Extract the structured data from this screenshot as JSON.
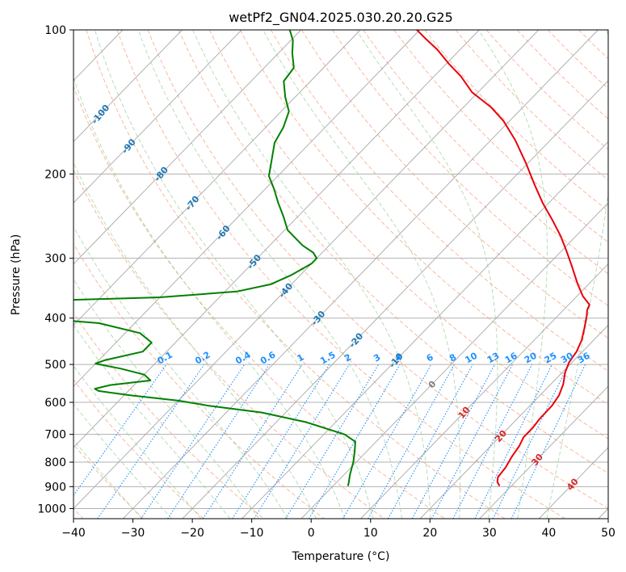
{
  "chart_data": {
    "type": "line",
    "title": "wetPf2_GN04.2025.030.20.20.G25",
    "xlabel": "Temperature (°C)",
    "ylabel": "Pressure (hPa)",
    "xlim": [
      -40,
      50
    ],
    "ylim": [
      1050,
      100
    ],
    "y_scale": "log",
    "skew": true,
    "grid": true,
    "x_ticks": [
      -40,
      -30,
      -20,
      -10,
      0,
      10,
      20,
      30,
      40,
      50
    ],
    "y_ticks": [
      100,
      200,
      300,
      400,
      500,
      600,
      700,
      800,
      900,
      1000
    ],
    "series": [
      {
        "role": "temperature",
        "color": "#e8000b",
        "points": [
          [
            897,
            28.0
          ],
          [
            880,
            27.0
          ],
          [
            860,
            26.3
          ],
          [
            820,
            26.0
          ],
          [
            780,
            25.3
          ],
          [
            740,
            24.8
          ],
          [
            710,
            24.1
          ],
          [
            680,
            24.1
          ],
          [
            650,
            23.8
          ],
          [
            610,
            23.7
          ],
          [
            580,
            23.2
          ],
          [
            550,
            22.1
          ],
          [
            520,
            20.5
          ],
          [
            495,
            19.5
          ],
          [
            470,
            19.0
          ],
          [
            445,
            18.0
          ],
          [
            420,
            16.5
          ],
          [
            395,
            14.8
          ],
          [
            385,
            14.0
          ],
          [
            375,
            13.5
          ],
          [
            360,
            11.0
          ],
          [
            340,
            8.2
          ],
          [
            310,
            4.0
          ],
          [
            290,
            0.9
          ],
          [
            270,
            -2.5
          ],
          [
            250,
            -6.5
          ],
          [
            230,
            -11.0
          ],
          [
            210,
            -15.5
          ],
          [
            190,
            -20.3
          ],
          [
            170,
            -25.9
          ],
          [
            155,
            -31.0
          ],
          [
            145,
            -35.4
          ],
          [
            135,
            -41.0
          ],
          [
            125,
            -45.5
          ],
          [
            118,
            -49.4
          ],
          [
            110,
            -53.8
          ],
          [
            104,
            -57.8
          ],
          [
            100,
            -60.5
          ]
        ]
      },
      {
        "role": "dewpoint",
        "color": "#008000",
        "points": [
          [
            897,
            2.5
          ],
          [
            880,
            2.0
          ],
          [
            850,
            1.0
          ],
          [
            800,
            -0.5
          ],
          [
            760,
            -2.0
          ],
          [
            725,
            -3.5
          ],
          [
            700,
            -6.5
          ],
          [
            660,
            -15.0
          ],
          [
            630,
            -24.0
          ],
          [
            610,
            -34.0
          ],
          [
            595,
            -40.0
          ],
          [
            580,
            -49.0
          ],
          [
            568,
            -55.0
          ],
          [
            562,
            -56.0
          ],
          [
            552,
            -54.0
          ],
          [
            540,
            -48.0
          ],
          [
            525,
            -50.0
          ],
          [
            510,
            -55.0
          ],
          [
            498,
            -60.0
          ],
          [
            490,
            -59.0
          ],
          [
            470,
            -54.0
          ],
          [
            450,
            -54.0
          ],
          [
            430,
            -57.5
          ],
          [
            410,
            -66.0
          ],
          [
            395,
            -83.0
          ],
          [
            388,
            -90.0
          ],
          [
            380,
            -88.0
          ],
          [
            368,
            -79.0
          ],
          [
            362,
            -60.0
          ],
          [
            352,
            -48.0
          ],
          [
            340,
            -43.5
          ],
          [
            325,
            -41.5
          ],
          [
            308,
            -40.0
          ],
          [
            300,
            -40.0
          ],
          [
            292,
            -41.5
          ],
          [
            282,
            -44.5
          ],
          [
            262,
            -49.5
          ],
          [
            245,
            -52.5
          ],
          [
            230,
            -55.5
          ],
          [
            215,
            -58.5
          ],
          [
            202,
            -61.5
          ],
          [
            188,
            -63.5
          ],
          [
            172,
            -66.0
          ],
          [
            160,
            -67.0
          ],
          [
            148,
            -68.7
          ],
          [
            138,
            -71.7
          ],
          [
            128,
            -74.5
          ],
          [
            120,
            -75.0
          ],
          [
            112,
            -77.6
          ],
          [
            105,
            -79.7
          ],
          [
            100,
            -81.9
          ]
        ]
      }
    ],
    "isotherm_labels": [
      {
        "label": "-100",
        "color": "#1f77b4"
      },
      {
        "label": "-90",
        "color": "#1f77b4"
      },
      {
        "label": "-80",
        "color": "#1f77b4"
      },
      {
        "label": "-70",
        "color": "#1f77b4"
      },
      {
        "label": "-60",
        "color": "#1f77b4"
      },
      {
        "label": "-50",
        "color": "#1f77b4"
      },
      {
        "label": "-40",
        "color": "#1f77b4"
      },
      {
        "label": "-30",
        "color": "#1f77b4"
      },
      {
        "label": "-20",
        "color": "#1f77b4"
      },
      {
        "label": "-10",
        "color": "#1f77b4"
      },
      {
        "label": "0",
        "color": "#7f7f7f"
      },
      {
        "label": "10",
        "color": "#d62728"
      },
      {
        "label": "20",
        "color": "#d62728"
      },
      {
        "label": "30",
        "color": "#d62728"
      },
      {
        "label": "40",
        "color": "#d62728"
      }
    ],
    "mixing_ratio_labels": [
      "0.1",
      "0.2",
      "0.4",
      "0.6",
      "1",
      "1.5",
      "2",
      "3",
      "4",
      "6",
      "8",
      "10",
      "13",
      "16",
      "20",
      "25",
      "30",
      "36"
    ],
    "mixing_ratio_color": "#1e90ff"
  }
}
